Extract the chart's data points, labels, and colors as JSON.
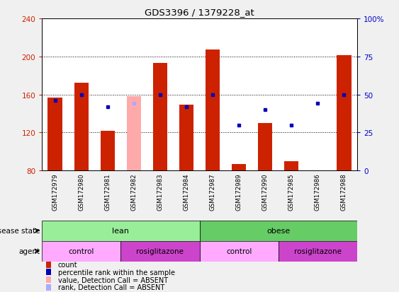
{
  "title": "GDS3396 / 1379228_at",
  "samples": [
    "GSM172979",
    "GSM172980",
    "GSM172981",
    "GSM172982",
    "GSM172983",
    "GSM172984",
    "GSM172987",
    "GSM172989",
    "GSM172990",
    "GSM172985",
    "GSM172986",
    "GSM172988"
  ],
  "count_values": [
    157,
    172,
    122,
    158,
    193,
    149,
    207,
    87,
    130,
    90,
    80,
    201
  ],
  "count_absent": [
    false,
    false,
    false,
    true,
    false,
    false,
    false,
    false,
    false,
    false,
    false,
    false
  ],
  "rank_values": [
    46,
    50,
    42,
    44,
    50,
    42,
    50,
    30,
    40,
    30,
    44,
    50
  ],
  "rank_absent": [
    false,
    false,
    false,
    true,
    false,
    false,
    false,
    false,
    false,
    false,
    false,
    false
  ],
  "ymin": 80,
  "ymax": 240,
  "yticks_left": [
    80,
    120,
    160,
    200,
    240
  ],
  "yticks_right": [
    0,
    25,
    50,
    75,
    100
  ],
  "left_color": "#cc2200",
  "right_color": "#0000cc",
  "bar_color_normal": "#cc2200",
  "bar_color_absent": "#ffaaaa",
  "rank_color_normal": "#0000bb",
  "rank_color_absent": "#aaaaff",
  "plot_bg": "#ffffff",
  "xtick_bg": "#d0d0d0",
  "disease_state_groups": [
    {
      "label": "lean",
      "start": 0,
      "end": 6,
      "color": "#99ee99"
    },
    {
      "label": "obese",
      "start": 6,
      "end": 12,
      "color": "#66cc66"
    }
  ],
  "agent_groups": [
    {
      "label": "control",
      "start": 0,
      "end": 3,
      "color": "#ffaaff"
    },
    {
      "label": "rosiglitazone",
      "start": 3,
      "end": 6,
      "color": "#cc44cc"
    },
    {
      "label": "control",
      "start": 6,
      "end": 9,
      "color": "#ffaaff"
    },
    {
      "label": "rosiglitazone",
      "start": 9,
      "end": 12,
      "color": "#cc44cc"
    }
  ],
  "legend_items": [
    {
      "label": "count",
      "color": "#cc2200"
    },
    {
      "label": "percentile rank within the sample",
      "color": "#0000bb"
    },
    {
      "label": "value, Detection Call = ABSENT",
      "color": "#ffaaaa"
    },
    {
      "label": "rank, Detection Call = ABSENT",
      "color": "#aaaaff"
    }
  ],
  "fig_width": 5.63,
  "fig_height": 4.14,
  "dpi": 100
}
